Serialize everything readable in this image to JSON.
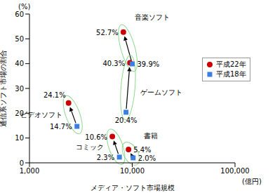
{
  "chart_data": {
    "type": "scatter",
    "x_label": "メディア・ソフト市場規模",
    "x_unit": "(億円)",
    "y_label": "通信系ソフト市場の割合",
    "y_unit": "(%)",
    "log": "x",
    "grid": false,
    "legend": "upper right",
    "data_labels": true,
    "categories": [
      "音楽ソフト",
      "ゲームソフト",
      "ビデオソフト",
      "コミック",
      "書籍"
    ],
    "series": [
      {
        "name": "平成22年",
        "color": "#cc0000",
        "marker": "circle",
        "x": [
          8200,
          9500,
          2400,
          6400,
          9200
        ],
        "values": [
          52.7,
          40.3,
          24.1,
          10.6,
          5.4
        ],
        "value_labels": [
          "52.7%",
          "40.3%",
          "24.1%",
          "10.6%",
          "5.4%"
        ]
      },
      {
        "name": "平成18年",
        "color": "#3b7fe0",
        "marker": "square",
        "x": [
          10000,
          8700,
          2900,
          7500,
          10200
        ],
        "values": [
          39.9,
          20.4,
          14.7,
          2.3,
          2.0
        ],
        "value_labels": [
          "39.9%",
          "20.4%",
          "14.7%",
          "2.3%",
          "2.0%"
        ]
      }
    ],
    "xlim": [
      1000,
      100000
    ],
    "xticks": [
      {
        "value": 1000,
        "label": "1,000"
      },
      {
        "value": 10000,
        "label": "10,000"
      },
      {
        "value": 100000,
        "label": "100,000"
      }
    ],
    "ylim": [
      0,
      60
    ],
    "yticks": [
      0,
      10,
      20,
      30,
      40,
      50,
      60
    ]
  }
}
